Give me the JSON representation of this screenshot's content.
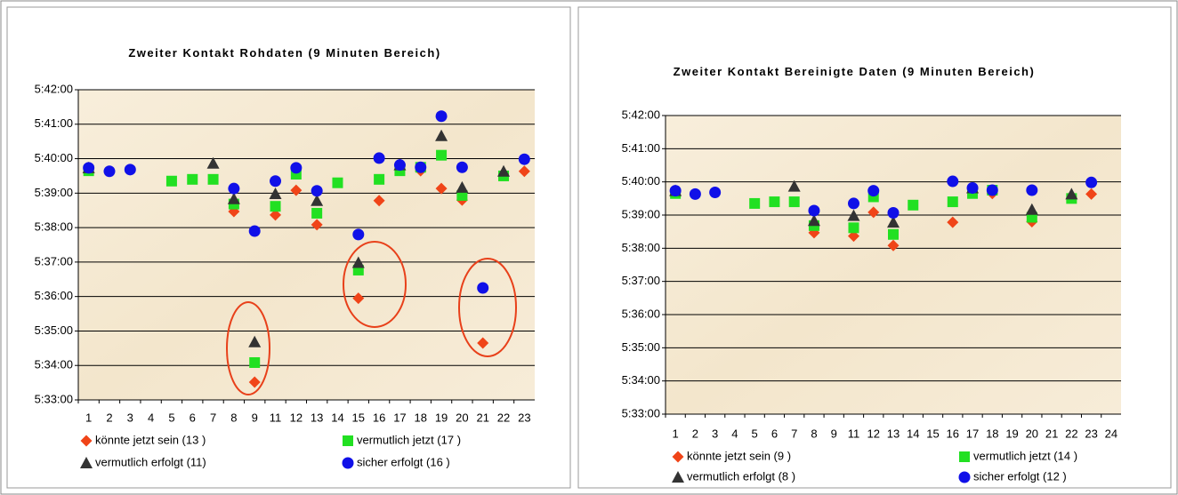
{
  "chart_data": [
    {
      "type": "scatter",
      "title": "Zweiter Kontakt Rohdaten (9 Minuten Bereich)",
      "categories": [
        1,
        2,
        3,
        4,
        5,
        6,
        7,
        8,
        9,
        11,
        12,
        13,
        14,
        15,
        16,
        17,
        18,
        19,
        20,
        21,
        22,
        23
      ],
      "ylim": [
        19980,
        20520
      ],
      "yticks": [
        {
          "value": 19980,
          "label": "5:33:00"
        },
        {
          "value": 20040,
          "label": "5:34:00"
        },
        {
          "value": 20100,
          "label": "5:35:00"
        },
        {
          "value": 20160,
          "label": "5:36:00"
        },
        {
          "value": 20220,
          "label": "5:37:00"
        },
        {
          "value": 20280,
          "label": "5:38:00"
        },
        {
          "value": 20340,
          "label": "5:39:00"
        },
        {
          "value": 20400,
          "label": "5:40:00"
        },
        {
          "value": 20460,
          "label": "5:41:00"
        },
        {
          "value": 20520,
          "label": "5:42:00"
        }
      ],
      "grid": true,
      "series": [
        {
          "name": "könnte jetzt sein (13 )",
          "color": "#f04418",
          "marker": "diamond",
          "values": [
            20382,
            null,
            null,
            null,
            null,
            null,
            null,
            20308,
            20011,
            20302,
            20345,
            20285,
            null,
            20157,
            20327,
            null,
            20379,
            20348,
            20328,
            20079,
            null,
            20378
          ]
        },
        {
          "name": "vermutlich jetzt (17 )",
          "color": "#22e022",
          "marker": "square",
          "values": [
            20379,
            null,
            null,
            null,
            20361,
            20364,
            20364,
            20321,
            20045,
            20317,
            20373,
            20305,
            20358,
            20206,
            20364,
            20379,
            20385,
            20406,
            20336,
            null,
            20370,
            null
          ]
        },
        {
          "name": "vermutlich erfolgt (11)",
          "color": "#333333",
          "marker": "triangle",
          "values": [
            20384,
            null,
            null,
            null,
            null,
            null,
            20392,
            20330,
            20081,
            20339,
            null,
            20327,
            null,
            20219,
            null,
            20389,
            null,
            20440,
            20350,
            null,
            20378,
            null
          ]
        },
        {
          "name": "sicher erfolgt   (16 )",
          "color": "#1010e8",
          "marker": "circle",
          "values": [
            20384,
            20378,
            20381,
            null,
            null,
            null,
            null,
            20348,
            20274,
            20361,
            20384,
            20344,
            null,
            20268,
            20401,
            20389,
            20385,
            20474,
            20385,
            20175,
            null,
            20399
          ]
        }
      ]
    },
    {
      "type": "scatter",
      "title": "Zweiter Kontakt Bereinigte Daten (9 Minuten Bereich)",
      "categories": [
        1,
        2,
        3,
        4,
        5,
        6,
        7,
        8,
        9,
        11,
        12,
        13,
        14,
        15,
        16,
        17,
        18,
        19,
        20,
        21,
        22,
        23,
        24
      ],
      "ylim": [
        19980,
        20520
      ],
      "yticks": [
        {
          "value": 19980,
          "label": "5:33:00"
        },
        {
          "value": 20040,
          "label": "5:34:00"
        },
        {
          "value": 20100,
          "label": "5:35:00"
        },
        {
          "value": 20160,
          "label": "5:36:00"
        },
        {
          "value": 20220,
          "label": "5:37:00"
        },
        {
          "value": 20280,
          "label": "5:38:00"
        },
        {
          "value": 20340,
          "label": "5:39:00"
        },
        {
          "value": 20400,
          "label": "5:40:00"
        },
        {
          "value": 20460,
          "label": "5:41:00"
        },
        {
          "value": 20520,
          "label": "5:42:00"
        }
      ],
      "grid": true,
      "series": [
        {
          "name": "könnte jetzt sein (9 )",
          "color": "#f04418",
          "marker": "diamond",
          "values": [
            20382,
            null,
            null,
            null,
            null,
            null,
            null,
            20308,
            null,
            20302,
            20345,
            20285,
            null,
            null,
            20327,
            null,
            20379,
            null,
            20328,
            null,
            null,
            20378,
            null
          ]
        },
        {
          "name": "vermutlich jetzt (14 )",
          "color": "#22e022",
          "marker": "square",
          "values": [
            20379,
            null,
            null,
            null,
            20361,
            20364,
            20364,
            20321,
            null,
            20317,
            20373,
            20305,
            20358,
            null,
            20364,
            20379,
            20385,
            null,
            20336,
            null,
            20370,
            null,
            null
          ]
        },
        {
          "name": "vermutlich erfolgt (8 )",
          "color": "#333333",
          "marker": "triangle",
          "values": [
            20384,
            null,
            null,
            null,
            null,
            null,
            20392,
            20330,
            null,
            20339,
            null,
            20327,
            null,
            null,
            null,
            20389,
            null,
            null,
            20350,
            null,
            20378,
            null,
            null
          ]
        },
        {
          "name": "sicher erfolgt (12 )",
          "color": "#1010e8",
          "marker": "circle",
          "values": [
            20384,
            20378,
            20381,
            null,
            null,
            null,
            null,
            20348,
            null,
            20361,
            20384,
            20344,
            null,
            null,
            20401,
            20389,
            20385,
            null,
            20385,
            null,
            null,
            20399,
            null
          ]
        }
      ]
    }
  ]
}
